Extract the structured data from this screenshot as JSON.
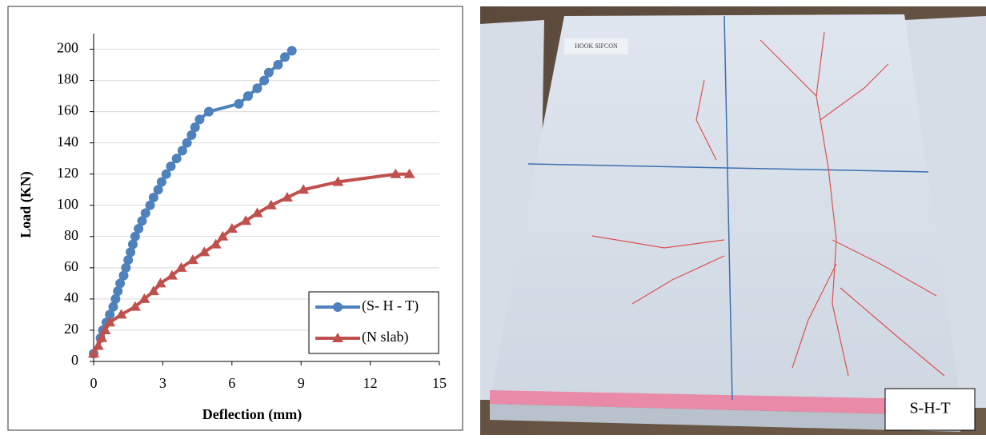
{
  "chart_data": {
    "type": "line",
    "xlabel": "Deflection (mm)",
    "ylabel": "Load (KN)",
    "xlim": [
      0,
      15
    ],
    "xticks": [
      0,
      3,
      6,
      9,
      12,
      15
    ],
    "ylim": [
      0,
      210
    ],
    "yticks": [
      0,
      20,
      40,
      60,
      80,
      100,
      120,
      140,
      160,
      180,
      200
    ],
    "grid": true,
    "legend": "lower right",
    "series": [
      {
        "name": "(S- H - T)",
        "color": "#4f81bd",
        "marker": "circle",
        "x": [
          0,
          0.3,
          0.4,
          0.55,
          0.7,
          0.85,
          0.95,
          1.05,
          1.15,
          1.3,
          1.4,
          1.5,
          1.6,
          1.7,
          1.8,
          1.95,
          2.1,
          2.25,
          2.45,
          2.6,
          2.8,
          2.95,
          3.15,
          3.35,
          3.6,
          3.85,
          4.05,
          4.25,
          4.4,
          4.6,
          5.0,
          6.3,
          6.7,
          7.1,
          7.4,
          7.6,
          8.0,
          8.3,
          8.6
        ],
        "values": [
          5,
          15,
          20,
          25,
          30,
          35,
          40,
          45,
          50,
          55,
          60,
          65,
          70,
          75,
          80,
          85,
          90,
          95,
          100,
          105,
          110,
          115,
          120,
          125,
          130,
          135,
          140,
          145,
          150,
          155,
          160,
          165,
          170,
          175,
          180,
          185,
          190,
          195,
          199
        ]
      },
      {
        "name": "(N slab)",
        "color": "#c0504d",
        "marker": "triangle",
        "x": [
          0,
          0.2,
          0.35,
          0.5,
          0.7,
          1.2,
          1.8,
          2.2,
          2.6,
          2.9,
          3.4,
          3.8,
          4.3,
          4.8,
          5.3,
          5.6,
          6.0,
          6.6,
          7.1,
          7.7,
          8.4,
          9.1,
          10.6,
          13.1,
          13.7
        ],
        "values": [
          5,
          10,
          15,
          20,
          25,
          30,
          35,
          40,
          45,
          50,
          55,
          60,
          65,
          70,
          75,
          80,
          85,
          90,
          95,
          100,
          105,
          110,
          115,
          120,
          120
        ]
      }
    ]
  },
  "photo": {
    "label": "S-H-T",
    "slab_text": "HOOK SIFCON"
  }
}
